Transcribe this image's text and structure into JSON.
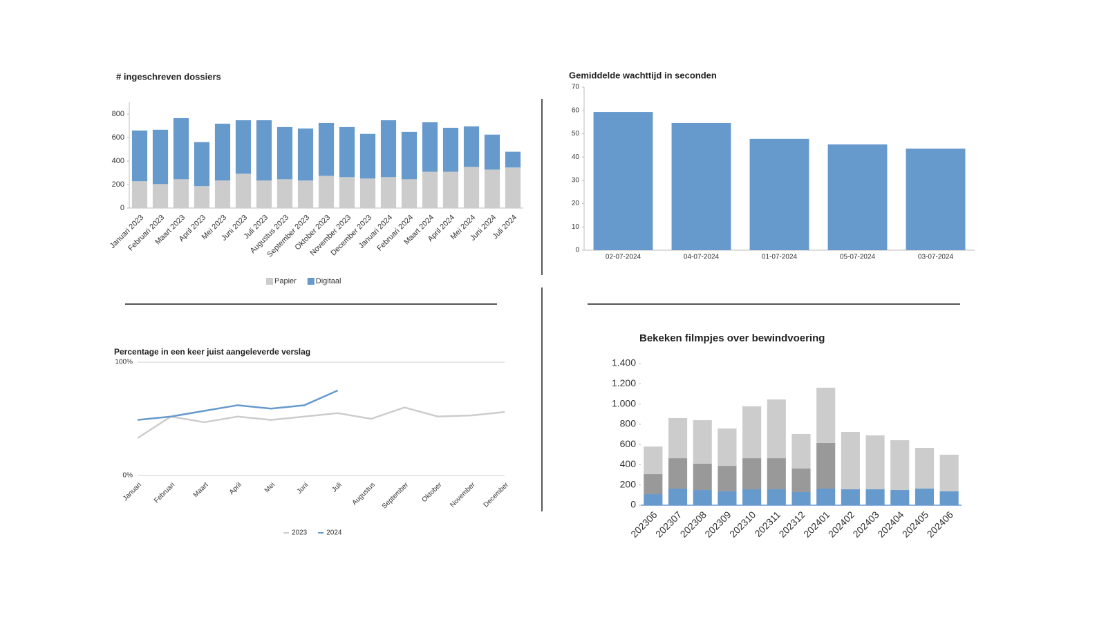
{
  "chart_data": [
    {
      "type": "bar",
      "stacked": true,
      "title": "# ingeschreven dossiers",
      "categories": [
        "Januari 2023",
        "Februari 2023",
        "Maart 2023",
        "April 2023",
        "Mei 2023",
        "Juni 2023",
        "Juli 2023",
        "Augustus 2023",
        "September 2023",
        "Oktober 2023",
        "November 2023",
        "December 2023",
        "Januari 2024",
        "Februari 2024",
        "Maart 2024",
        "April 2024",
        "Mei 2024",
        "Juni 2024",
        "Juli 2024"
      ],
      "series": [
        {
          "name": "Papier",
          "color": "#cccccc",
          "values": [
            228,
            204,
            245,
            187,
            234,
            292,
            234,
            245,
            234,
            274,
            263,
            251,
            263,
            245,
            309,
            309,
            350,
            327,
            345
          ]
        },
        {
          "name": "Digitaal",
          "color": "#6699cc",
          "values": [
            432,
            462,
            520,
            374,
            484,
            455,
            513,
            444,
            443,
            450,
            426,
            380,
            484,
            403,
            421,
            374,
            345,
            298,
            134
          ]
        }
      ],
      "ylim": [
        0,
        900
      ],
      "yticks": [
        0,
        200,
        400,
        600,
        800
      ],
      "grid": false,
      "legend": "bottom"
    },
    {
      "type": "bar",
      "title": "Gemiddelde wachttijd in seconden",
      "categories": [
        "02-07-2024",
        "04-07-2024",
        "01-07-2024",
        "05-07-2024",
        "03-07-2024"
      ],
      "values": [
        59.3,
        54.6,
        47.8,
        45.4,
        43.6
      ],
      "color": "#6699cc",
      "ylim": [
        0,
        70
      ],
      "yticks": [
        0,
        10,
        20,
        30,
        40,
        50,
        60,
        70
      ],
      "grid": false
    },
    {
      "type": "line",
      "title": "Percentage in een keer juist aangeleverde verslag",
      "categories": [
        "Januari",
        "Februari",
        "Maart",
        "April",
        "Mei",
        "Juni",
        "Juli",
        "Augustus",
        "September",
        "Oktober",
        "November",
        "December"
      ],
      "series": [
        {
          "name": "2023",
          "color": "#cccccc",
          "values": [
            33,
            52,
            47,
            52,
            49,
            52,
            55,
            50,
            60,
            52,
            53,
            56
          ]
        },
        {
          "name": "2024",
          "color": "#6699cc",
          "values": [
            49,
            52,
            57,
            62,
            59,
            62,
            75,
            null,
            null,
            null,
            null,
            null
          ]
        }
      ],
      "ylim": [
        0,
        100
      ],
      "yticks": [
        {
          "value": 0,
          "label": "0%"
        },
        {
          "value": 100,
          "label": "100%"
        }
      ],
      "grid": true,
      "legend": "bottom"
    },
    {
      "type": "bar",
      "stacked": true,
      "title": "Bekeken filmpjes over bewindvoering",
      "categories": [
        "202306",
        "202307",
        "202308",
        "202309",
        "202310",
        "202311",
        "202312",
        "202401",
        "202402",
        "202403",
        "202404",
        "202405",
        "202406"
      ],
      "series": [
        {
          "color": "#6699cc",
          "values": [
            109,
            164,
            150,
            137,
            157,
            157,
            130,
            164,
            157,
            157,
            150,
            164,
            137
          ]
        },
        {
          "color": "#999999",
          "values": [
            198,
            300,
            260,
            252,
            307,
            307,
            232,
            451,
            0,
            0,
            0,
            0,
            0
          ]
        },
        {
          "color": "#cccccc",
          "values": [
            273,
            397,
            430,
            369,
            513,
            581,
            342,
            546,
            567,
            533,
            492,
            403,
            362
          ]
        }
      ],
      "ylim": [
        0,
        1400
      ],
      "yticks": [
        0,
        200,
        400,
        600,
        800,
        {
          "value": 1000,
          "label": "1.000"
        },
        {
          "value": 1200,
          "label": "1.200"
        },
        {
          "value": 1400,
          "label": "1.400"
        }
      ],
      "grid": false
    }
  ]
}
